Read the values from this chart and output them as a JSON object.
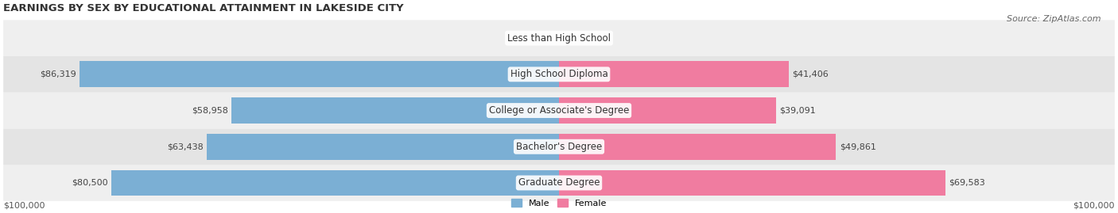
{
  "title": "EARNINGS BY SEX BY EDUCATIONAL ATTAINMENT IN LAKESIDE CITY",
  "source": "Source: ZipAtlas.com",
  "categories": [
    "Less than High School",
    "High School Diploma",
    "College or Associate's Degree",
    "Bachelor's Degree",
    "Graduate Degree"
  ],
  "male_values": [
    0,
    86319,
    58958,
    63438,
    80500
  ],
  "female_values": [
    0,
    41406,
    39091,
    49861,
    69583
  ],
  "male_color": "#7bafd4",
  "female_color": "#f07ca0",
  "male_color_light": "#b8d4ea",
  "female_color_light": "#f8b8cc",
  "row_bg_colors": [
    "#efefef",
    "#e4e4e4"
  ],
  "max_value": 100000,
  "xlabel_left": "$100,000",
  "xlabel_right": "$100,000",
  "legend_male": "Male",
  "legend_female": "Female",
  "title_fontsize": 9.5,
  "source_fontsize": 8,
  "label_fontsize": 8,
  "category_fontsize": 8.5
}
